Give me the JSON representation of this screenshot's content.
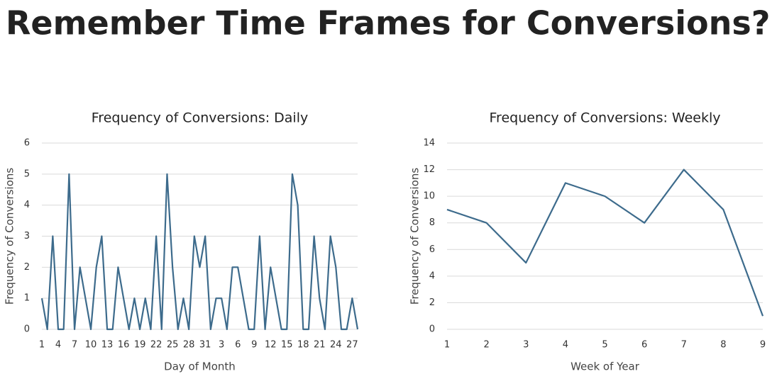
{
  "title": "Remember Time Frames for Conversions?",
  "chart_data": [
    {
      "type": "line",
      "title": "Frequency of Conversions: Daily",
      "x_label": "Day of Month",
      "y_label": "Frequency of Conversions",
      "categories": [
        1,
        null,
        null,
        4,
        null,
        null,
        7,
        null,
        null,
        10,
        null,
        null,
        13,
        null,
        null,
        16,
        null,
        null,
        19,
        null,
        null,
        22,
        null,
        null,
        25,
        null,
        null,
        28,
        null,
        null,
        31,
        null,
        null,
        3,
        null,
        null,
        6,
        null,
        null,
        9,
        null,
        null,
        12,
        null,
        null,
        15,
        null,
        null,
        18,
        null,
        null,
        21,
        null,
        null,
        24,
        null,
        null,
        27,
        null
      ],
      "series": [
        {
          "name": "Daily",
          "color": "#3d6b8c",
          "values": [
            1,
            0,
            3,
            0,
            0,
            5,
            0,
            2,
            1,
            0,
            2,
            3,
            0,
            0,
            2,
            1,
            0,
            1,
            0,
            1,
            0,
            3,
            0,
            5,
            2,
            0,
            1,
            0,
            3,
            2,
            3,
            0,
            1,
            1,
            0,
            2,
            2,
            1,
            0,
            0,
            3,
            0,
            2,
            1,
            0,
            0,
            5,
            4,
            0,
            0,
            3,
            1,
            0,
            3,
            2,
            0,
            0,
            1,
            0
          ]
        }
      ],
      "ylim": [
        0,
        6
      ],
      "yticks": [
        0,
        1,
        2,
        3,
        4,
        5,
        6
      ],
      "grid": true
    },
    {
      "type": "line",
      "title": "Frequency of Conversions: Weekly",
      "x_label": "Week of Year",
      "y_label": "Frequency of Conversions",
      "x": [
        1,
        2,
        3,
        4,
        5,
        6,
        7,
        8,
        9
      ],
      "series": [
        {
          "name": "Weekly",
          "color": "#3d6b8c",
          "values": [
            9,
            8,
            5,
            11,
            10,
            8,
            12,
            9,
            1
          ]
        }
      ],
      "xlim": [
        1,
        9
      ],
      "xticks": [
        1,
        2,
        3,
        4,
        5,
        6,
        7,
        8,
        9
      ],
      "ylim": [
        0,
        14
      ],
      "yticks": [
        0,
        2,
        4,
        6,
        8,
        10,
        12,
        14
      ],
      "grid": true
    }
  ]
}
